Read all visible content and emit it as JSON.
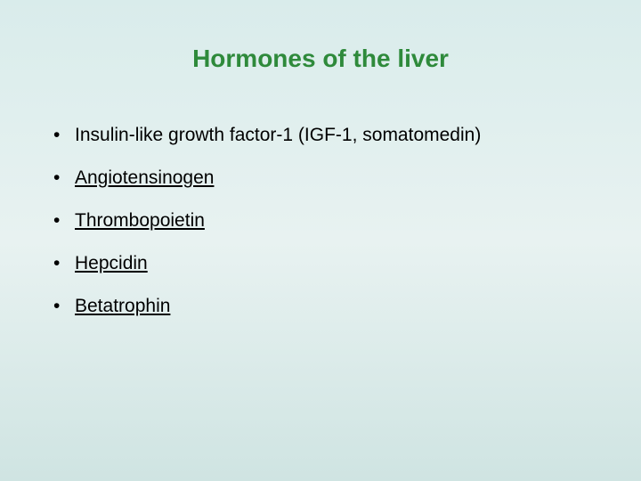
{
  "colors": {
    "bg_top": "#d9eceb",
    "bg_mid": "#e8f2f1",
    "bg_bot": "#cfe4e2",
    "title": "#2e8a3b",
    "body": "#000000",
    "link": "#000000"
  },
  "title": "Hormones of the liver",
  "bullets": [
    {
      "text": "Insulin-like growth factor-1 (IGF-1, somatomedin)",
      "link": false
    },
    {
      "text": "Angiotensinogen",
      "link": true
    },
    {
      "text": "Thrombopoietin",
      "link": true
    },
    {
      "text": "Hepcidin",
      "link": true
    },
    {
      "text": "Betatrophin",
      "link": true
    }
  ],
  "bullet_char": "•"
}
